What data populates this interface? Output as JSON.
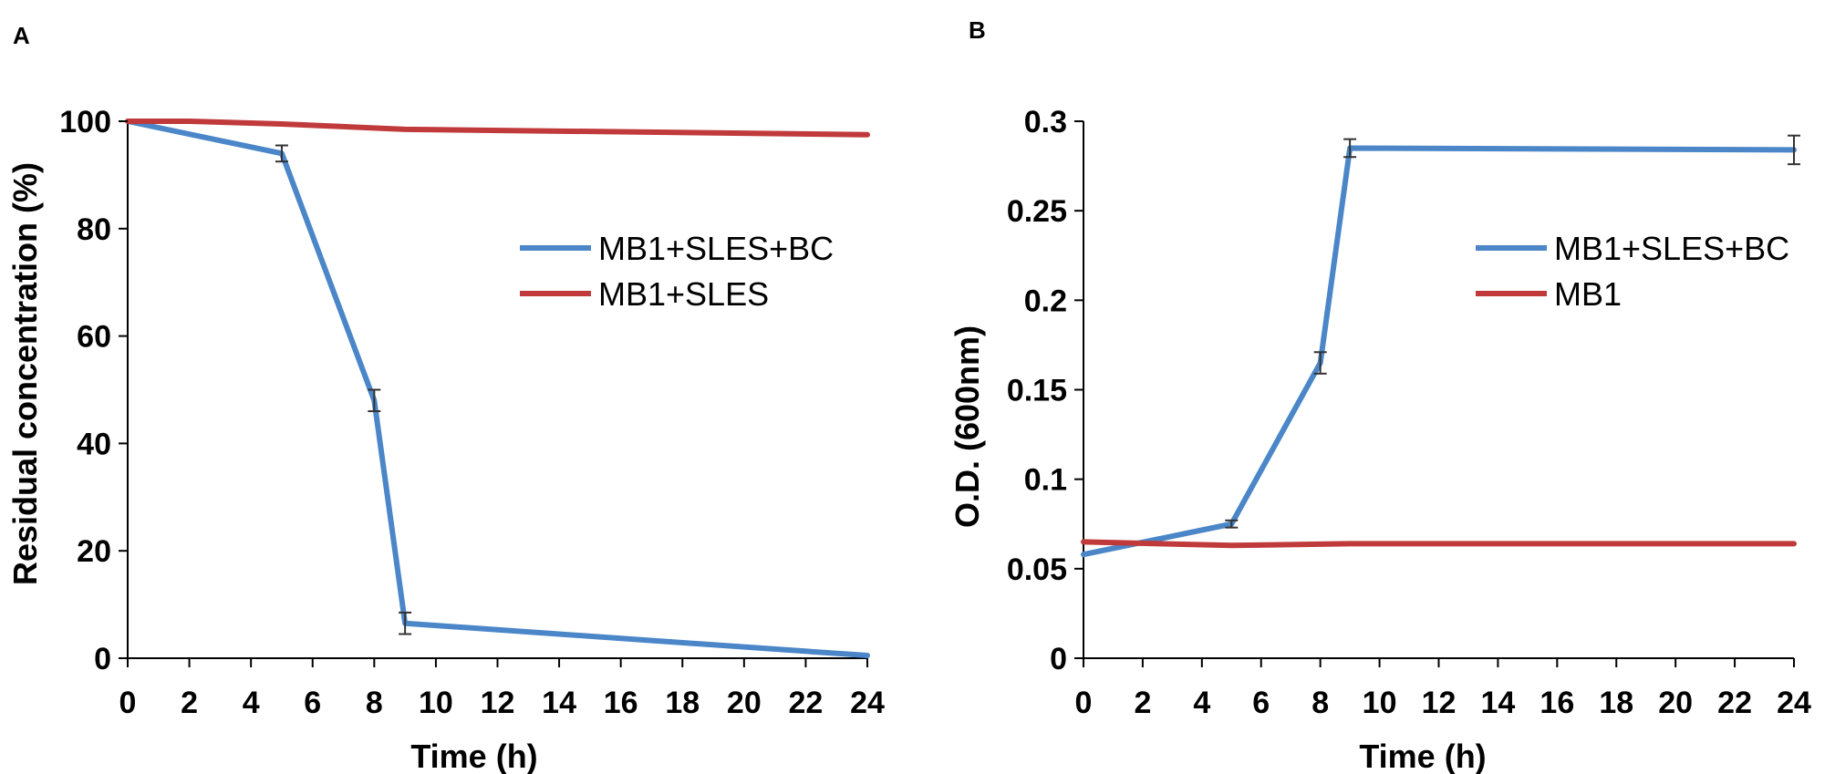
{
  "chart_data": [
    {
      "panel": "A",
      "type": "line",
      "xlabel": "Time (h)",
      "ylabel": "Residual concentration (%)",
      "xlim": [
        0,
        24
      ],
      "ylim": [
        0,
        100
      ],
      "xticks": [
        0,
        2,
        4,
        6,
        8,
        10,
        12,
        14,
        16,
        18,
        20,
        22,
        24
      ],
      "yticks": [
        0,
        20,
        40,
        60,
        80,
        100
      ],
      "legend_position": "right",
      "series": [
        {
          "name": "MB1+SLES+BC",
          "color": "#4a86c8",
          "x": [
            0,
            5,
            8,
            9,
            24
          ],
          "y": [
            100,
            94,
            48,
            6.5,
            0.5
          ],
          "err": [
            0,
            1.5,
            2,
            2,
            0
          ]
        },
        {
          "name": "MB1+SLES",
          "color": "#c0393b",
          "x": [
            0,
            2,
            5,
            9,
            24
          ],
          "y": [
            100,
            100,
            99.5,
            98.5,
            97.5
          ],
          "err": [
            0,
            0,
            0,
            0,
            0
          ]
        }
      ]
    },
    {
      "panel": "B",
      "type": "line",
      "xlabel": "Time (h)",
      "ylabel": "O.D. (600nm)",
      "xlim": [
        0,
        24
      ],
      "ylim": [
        0,
        0.3
      ],
      "xticks": [
        0,
        2,
        4,
        6,
        8,
        10,
        12,
        14,
        16,
        18,
        20,
        22,
        24
      ],
      "yticks": [
        0,
        0.05,
        0.1,
        0.15,
        0.2,
        0.25,
        0.3
      ],
      "ytick_labels": [
        "0",
        "0.05",
        "0.1",
        "0.15",
        "0.2",
        "0.25",
        "0.3"
      ],
      "legend_position": "right",
      "series": [
        {
          "name": "MB1+SLES+BC",
          "color": "#4a86c8",
          "x": [
            0,
            5,
            8,
            9,
            24
          ],
          "y": [
            0.058,
            0.075,
            0.165,
            0.285,
            0.284
          ],
          "err": [
            0,
            0.002,
            0.006,
            0.005,
            0.008
          ]
        },
        {
          "name": "MB1",
          "color": "#c0393b",
          "x": [
            0,
            5,
            9,
            24
          ],
          "y": [
            0.065,
            0.063,
            0.064,
            0.064
          ],
          "err": [
            0,
            0,
            0,
            0
          ]
        }
      ]
    }
  ]
}
